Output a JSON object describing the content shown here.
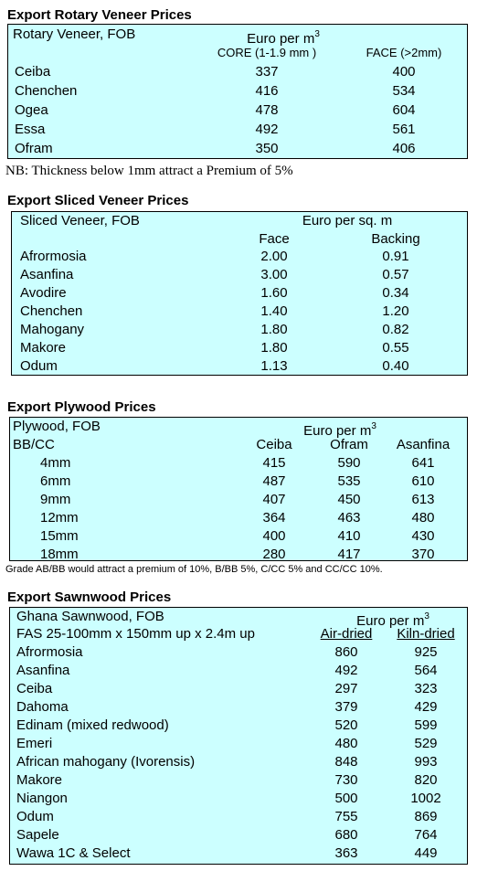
{
  "sections": [
    {
      "title": "Export Rotary Veneer Prices",
      "label": "Rotary Veneer,  FOB",
      "unit": "Euro  per m",
      "unit_sup": "3",
      "columns": [
        "CORE (1-1.9 mm )",
        "FACE (>2mm)"
      ],
      "rows": [
        [
          "Ceiba",
          "337",
          "400"
        ],
        [
          "Chenchen",
          "416",
          "534"
        ],
        [
          "Ogea",
          "478",
          "604"
        ],
        [
          "Essa",
          "492",
          "561"
        ],
        [
          "Ofram",
          "350",
          "406"
        ]
      ],
      "note": "NB: Thickness below 1mm attract a Premium of 5%"
    },
    {
      "title": "Export Sliced Veneer Prices",
      "label": "Sliced Veneer, FOB",
      "unit": "Euro per sq. m",
      "columns": [
        "Face",
        "Backing"
      ],
      "rows": [
        [
          "Afrormosia",
          "2.00",
          "0.91"
        ],
        [
          "Asanfina",
          "3.00",
          "0.57"
        ],
        [
          "Avodire",
          "1.60",
          "0.34"
        ],
        [
          "Chenchen",
          "1.40",
          "1.20"
        ],
        [
          "Mahogany",
          "1.80",
          "0.82"
        ],
        [
          "Makore",
          "1.80",
          "0.55"
        ],
        [
          "Odum",
          "1.13",
          "0.40"
        ]
      ]
    },
    {
      "title": "Export Plywood Prices",
      "label": "Plywood, FOB",
      "unit": "Euro per m",
      "unit_sup": "3",
      "subheader": "BB/CC",
      "columns": [
        "Ceiba",
        "Ofram",
        "Asanfina"
      ],
      "rows": [
        [
          "4mm",
          "415",
          "590",
          "641"
        ],
        [
          "6mm",
          "487",
          "535",
          "610"
        ],
        [
          "9mm",
          "407",
          "450",
          "613"
        ],
        [
          "12mm",
          "364",
          "463",
          "480"
        ],
        [
          "15mm",
          "400",
          "410",
          "430"
        ],
        [
          "18mm",
          "280",
          "417",
          "370"
        ]
      ],
      "note": "Grade AB/BB would attract a premium of 10%, B/BB 5%, C/CC 5% and CC/CC 10%."
    },
    {
      "title": "Export Sawnwood Prices",
      "label": "Ghana Sawnwood, FOB",
      "unit": "Euro per m",
      "unit_sup": "3",
      "subheader": "FAS 25-100mm x 150mm up x 2.4m up",
      "columns": [
        "Air-dried",
        "Kiln-dried"
      ],
      "rows": [
        [
          "Afrormosia",
          "860",
          "925"
        ],
        [
          "Asanfina",
          "492",
          "564"
        ],
        [
          "Ceiba",
          "297",
          "323"
        ],
        [
          "Dahoma",
          "379",
          "429"
        ],
        [
          "Edinam (mixed redwood)",
          "520",
          "599"
        ],
        [
          "Emeri",
          "480",
          "529"
        ],
        [
          "African mahogany (Ivorensis)",
          "848",
          "993"
        ],
        [
          "Makore",
          "730",
          "820"
        ],
        [
          "Niangon",
          "500",
          "1002"
        ],
        [
          "Odum",
          "755",
          "869"
        ],
        [
          "Sapele",
          "680",
          "764"
        ],
        [
          "Wawa 1C & Select",
          "363",
          "449"
        ]
      ]
    }
  ]
}
